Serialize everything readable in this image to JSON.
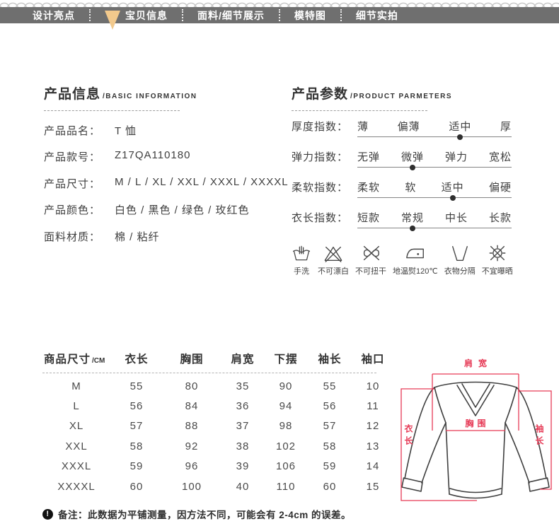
{
  "nav": {
    "bar_color": "#6f6f6f",
    "active_marker_color": "#f2c98c",
    "active_marker_icon": "triangle-down-icon",
    "tabs": [
      {
        "name": "design-highlights",
        "label": "设计亮点",
        "active": false
      },
      {
        "name": "product-info",
        "label": "宝贝信息",
        "active": true
      },
      {
        "name": "fabric-details",
        "label": "面料/细节展示",
        "active": false
      },
      {
        "name": "model-photos",
        "label": "模特图",
        "active": false
      },
      {
        "name": "detail-shots",
        "label": "细节实拍",
        "active": false
      }
    ]
  },
  "basic_info": {
    "title": "产品信息",
    "subtitle": "/BASIC INFORMATION",
    "rows": [
      {
        "label": "产品品名：",
        "value": "T 恤"
      },
      {
        "label": "产品款号：",
        "value": "Z17QA110180"
      },
      {
        "label": "产品尺寸：",
        "value": "M / L / XL / XXL / XXXL / XXXXL"
      },
      {
        "label": "产品颜色：",
        "value": "白色 / 黑色 / 绿色 / 玫红色"
      },
      {
        "label": "面料材质：",
        "value": "棉 / 粘纤"
      }
    ]
  },
  "parameters": {
    "title": "产品参数",
    "subtitle": "/PRODUCT PARMETERS",
    "indices": [
      {
        "label": "厚度指数：",
        "options": [
          "薄",
          "偏薄",
          "适中",
          "厚"
        ],
        "selected": 2
      },
      {
        "label": "弹力指数：",
        "options": [
          "无弹",
          "微弹",
          "弹力",
          "宽松"
        ],
        "selected": 1
      },
      {
        "label": "柔软指数：",
        "options": [
          "柔软",
          "软",
          "适中",
          "偏硬"
        ],
        "selected": 2
      },
      {
        "label": "衣长指数：",
        "options": [
          "短款",
          "常规",
          "中长",
          "长款"
        ],
        "selected": 1
      }
    ],
    "care": [
      {
        "icon": "hand-wash-icon",
        "label": "手洗"
      },
      {
        "icon": "no-bleach-icon",
        "label": "不可漂白"
      },
      {
        "icon": "no-wring-icon",
        "label": "不可扭干"
      },
      {
        "icon": "iron-low-temp-icon",
        "label": "地温熨120℃"
      },
      {
        "icon": "wash-separately-icon",
        "label": "衣物分隔"
      },
      {
        "icon": "no-sun-exposure-icon",
        "label": "不宜曝晒"
      }
    ]
  },
  "size_table": {
    "header": {
      "first": "商品尺寸",
      "unit": "/CM",
      "columns": [
        "衣长",
        "胸围",
        "肩宽",
        "下摆",
        "袖长",
        "袖口"
      ]
    },
    "rows": [
      {
        "size": "M",
        "values": [
          "55",
          "80",
          "35",
          "90",
          "55",
          "10"
        ]
      },
      {
        "size": "L",
        "values": [
          "56",
          "84",
          "36",
          "94",
          "56",
          "11"
        ]
      },
      {
        "size": "XL",
        "values": [
          "57",
          "88",
          "37",
          "98",
          "57",
          "12"
        ]
      },
      {
        "size": "XXL",
        "values": [
          "58",
          "92",
          "38",
          "102",
          "58",
          "13"
        ]
      },
      {
        "size": "XXXL",
        "values": [
          "59",
          "96",
          "39",
          "106",
          "59",
          "14"
        ]
      },
      {
        "size": "XXXXL",
        "values": [
          "60",
          "100",
          "40",
          "110",
          "60",
          "15"
        ]
      }
    ]
  },
  "diagram": {
    "line_color": "#e63a56",
    "labels": {
      "shoulder": "肩宽",
      "chest": "胸围",
      "length": "衣长",
      "sleeve": "袖长"
    }
  },
  "note": {
    "icon": "exclamation-circle-icon",
    "icon_glyph": "!",
    "text": "备注：此数据为平铺测量，因方法不同，可能会有 2-4cm 的误差。"
  }
}
